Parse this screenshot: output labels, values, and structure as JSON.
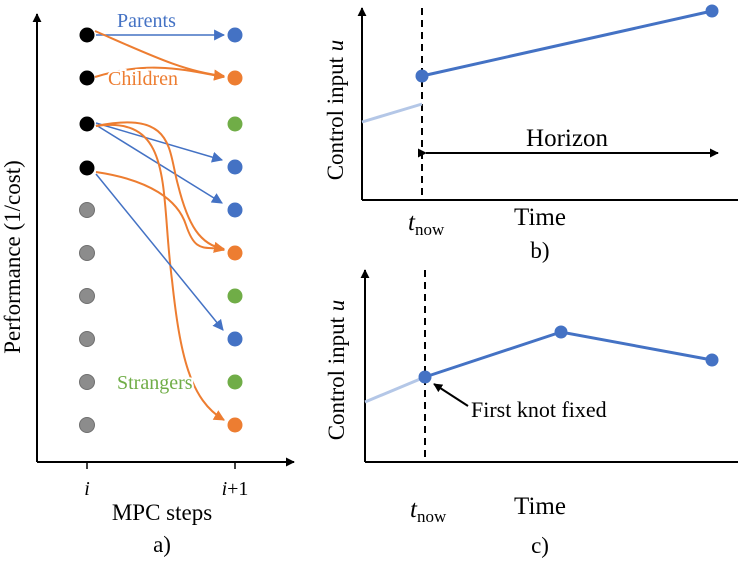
{
  "panel_a": {
    "ylabel": "Performance (1/cost)",
    "xlabel": "MPC steps",
    "tick_left": "i",
    "tick_right_var": "i",
    "tick_right_suffix": "+1",
    "caption": "a)",
    "label_parents": "Parents",
    "label_children": "Children",
    "label_strangers": "Strangers",
    "colors": {
      "parent": "#000000",
      "dominated": "#8c8c8c",
      "blue": "#4472c4",
      "orange": "#ed7d31",
      "green": "#70ad47"
    }
  },
  "panel_b": {
    "ylabel_text": "Control input ",
    "ylabel_var": "u",
    "xlabel": "Time",
    "tnow_t": "t",
    "tnow_sub": "now",
    "horizon_label": "Horizon",
    "caption": "b)"
  },
  "panel_c": {
    "ylabel_text": "Control input ",
    "ylabel_var": "u",
    "xlabel": "Time",
    "tnow_t": "t",
    "tnow_sub": "now",
    "annotation": "First knot fixed",
    "caption": "c)"
  }
}
